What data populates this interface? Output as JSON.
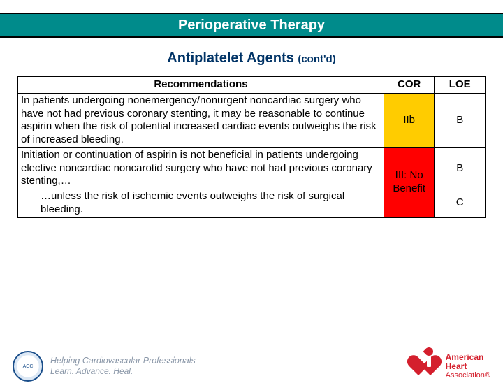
{
  "header": {
    "title": "Perioperative Therapy"
  },
  "subtitle": {
    "main": "Antiplatelet Agents ",
    "cont": "(cont'd)"
  },
  "table": {
    "columns": [
      "Recommendations",
      "COR",
      "LOE"
    ],
    "rows": [
      {
        "rec": "In patients undergoing nonemergency/nonurgent noncardiac surgery who have not had previous coronary stenting, it may be reasonable to continue aspirin when the risk of potential increased cardiac events outweighs the risk of increased bleeding.",
        "cor": "IIb",
        "cor_bg": "#ffcc00",
        "loe": "B"
      },
      {
        "rec": "Initiation or continuation of aspirin is not beneficial in patients undergoing elective noncardiac noncarotid surgery who have not had previous coronary stenting,…",
        "cor": "III: No Benefit",
        "cor_bg": "#ff0000",
        "cor_rowspan": 2,
        "loe": "B"
      },
      {
        "rec_indent": "…unless the risk of ischemic events outweighs the risk of surgical bleeding.",
        "loe": "C"
      }
    ]
  },
  "footer": {
    "tagline_line1": "Helping Cardiovascular Professionals",
    "tagline_line2": "Learn. Advance. Heal.",
    "aha_line1": "American",
    "aha_line2": "Heart",
    "aha_line3": "Association®"
  }
}
